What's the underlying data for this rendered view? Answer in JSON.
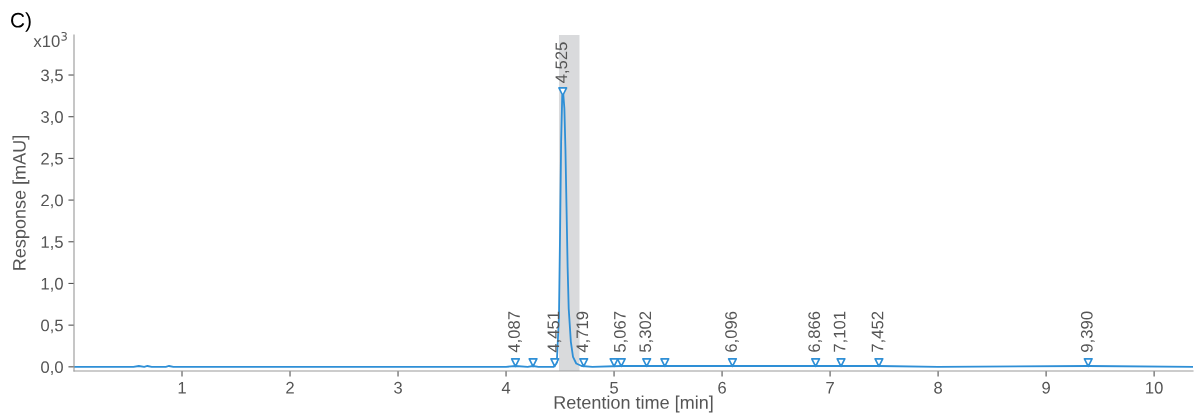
{
  "chart_data": {
    "type": "line",
    "title": "C)",
    "xlabel": "Retention time [min]",
    "ylabel": "Response [mAU]",
    "annotations": [
      "x10$^{3}$",
      {
        "text": "4,087",
        "x": 4.087,
        "y": 0.07
      },
      {
        "text": "4,451",
        "x": 4.451,
        "y": 0.07
      },
      {
        "text": "4,525",
        "x": 4.525,
        "y": 3.3
      },
      {
        "text": "4,719",
        "x": 4.719,
        "y": 0.07
      },
      {
        "text": "5,067",
        "x": 5.067,
        "y": 0.07
      },
      {
        "text": "5,302",
        "x": 5.302,
        "y": 0.07
      },
      {
        "text": "6,096",
        "x": 6.096,
        "y": 0.07
      },
      {
        "text": "6,866",
        "x": 6.866,
        "y": 0.07
      },
      {
        "text": "7,101",
        "x": 7.101,
        "y": 0.07
      },
      {
        "text": "7,452",
        "x": 7.452,
        "y": 0.07
      },
      {
        "text": "9,390",
        "x": 9.39,
        "y": 0.07
      }
    ],
    "series": [
      {
        "color": "#2e8fd6",
        "x": [
          0,
          0.55,
          0.6,
          0.65,
          0.68,
          0.72,
          0.85,
          0.88,
          0.92,
          4.0,
          4.087,
          4.2,
          4.25,
          4.3,
          4.44,
          4.47,
          4.49,
          4.5,
          4.51,
          4.52,
          4.53,
          4.54,
          4.55,
          4.56,
          4.57,
          4.58,
          4.6,
          4.62,
          4.65,
          4.7,
          4.8,
          5.067,
          5.302,
          6.096,
          6.866,
          7.101,
          7.452,
          8,
          9.39,
          10.36
        ],
        "values": [
          0,
          0,
          0.01,
          0,
          0.01,
          0,
          0,
          0.01,
          0,
          0,
          0.01,
          0,
          0.01,
          0,
          0,
          0.05,
          0.6,
          1.6,
          2.7,
          3.25,
          3.27,
          3.1,
          2.6,
          1.9,
          1.2,
          0.7,
          0.3,
          0.12,
          0.04,
          0.01,
          0,
          0.01,
          0.01,
          0.01,
          0.01,
          0.01,
          0.01,
          0,
          0.01,
          0
        ]
      },
      {
        "type": "scatter",
        "color": "#2e8fd6",
        "marker": "triangle",
        "x": [
          4.087,
          4.25,
          4.451,
          4.525,
          4.719,
          5.0,
          5.067,
          5.302,
          5.47,
          6.096,
          6.866,
          7.101,
          7.452,
          9.39
        ],
        "values": [
          0.05,
          0.05,
          0.05,
          3.3,
          0.05,
          0.05,
          0.05,
          0.05,
          0.05,
          0.05,
          0.05,
          0.05,
          0.05,
          0.05
        ]
      }
    ],
    "bands": [
      {
        "axis": "x",
        "from": 4.49,
        "to": 4.68,
        "color": "#d9dadc"
      }
    ],
    "xlim": [
      0,
      10.36
    ],
    "xticks": [
      1,
      2,
      3,
      4,
      5,
      6,
      7,
      8,
      9,
      10
    ],
    "ylim": [
      -0.05,
      3.98
    ],
    "yticks": [
      {
        "value": 0,
        "label": "0,0"
      },
      {
        "value": 0.5,
        "label": "0,5"
      },
      {
        "value": 1,
        "label": "1,0"
      },
      {
        "value": 1.5,
        "label": "1,5"
      },
      {
        "value": 2,
        "label": "2,0"
      },
      {
        "value": 2.5,
        "label": "2,5"
      },
      {
        "value": 3,
        "label": "3,0"
      },
      {
        "value": 3.5,
        "label": "3,5"
      }
    ],
    "grid": false,
    "legend": false
  }
}
